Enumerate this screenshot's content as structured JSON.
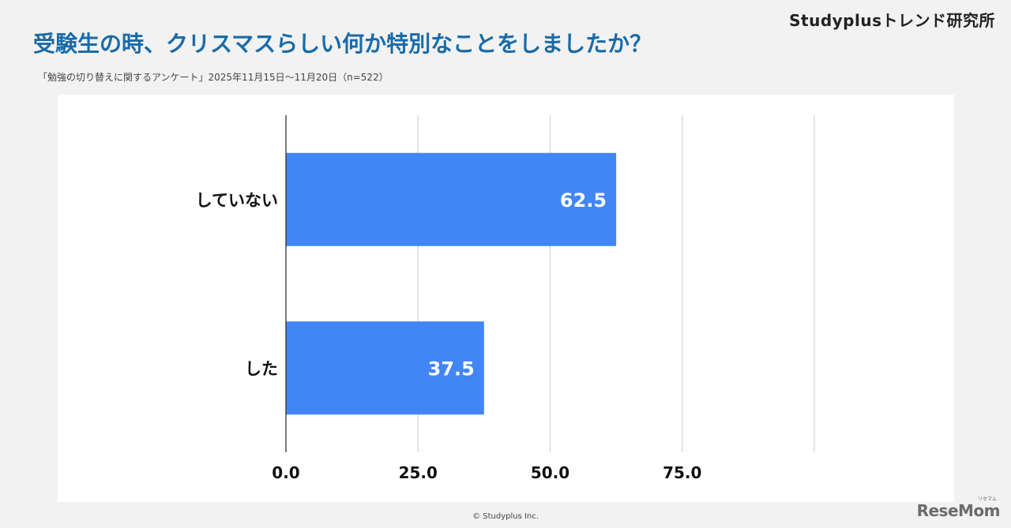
{
  "brand": "Studyplusトレンド研究所",
  "title": "受験生の時、クリスマスらしい何か特別なことをしましたか？",
  "subtitle": "「勉強の切り替えに関するアンケート」2025年11月15日〜11月20日（n=522）",
  "footer": "© Studyplus Inc.",
  "watermark": {
    "text": "ReseMom",
    "small": "リセマム"
  },
  "colors": {
    "bar": "#4285f4",
    "title": "#1a6ba8",
    "gridline": "#cccccc",
    "axis": "#333333",
    "background": "#f2f2f2",
    "panel": "#ffffff"
  },
  "chart_data": {
    "type": "bar",
    "orientation": "horizontal",
    "categories": [
      "していない",
      "した"
    ],
    "values": [
      62.5,
      37.5
    ],
    "value_labels": [
      "62.5",
      "37.5"
    ],
    "xlim": [
      0,
      100
    ],
    "xticks": [
      0,
      25,
      50,
      75,
      100
    ],
    "xtick_labels": [
      "0.0",
      "25.0",
      "50.0",
      "75.0",
      ""
    ],
    "grid": true,
    "legend": "none",
    "title": "受験生の時、クリスマスらしい何か特別なことをしましたか？",
    "xlabel": "",
    "ylabel": ""
  }
}
